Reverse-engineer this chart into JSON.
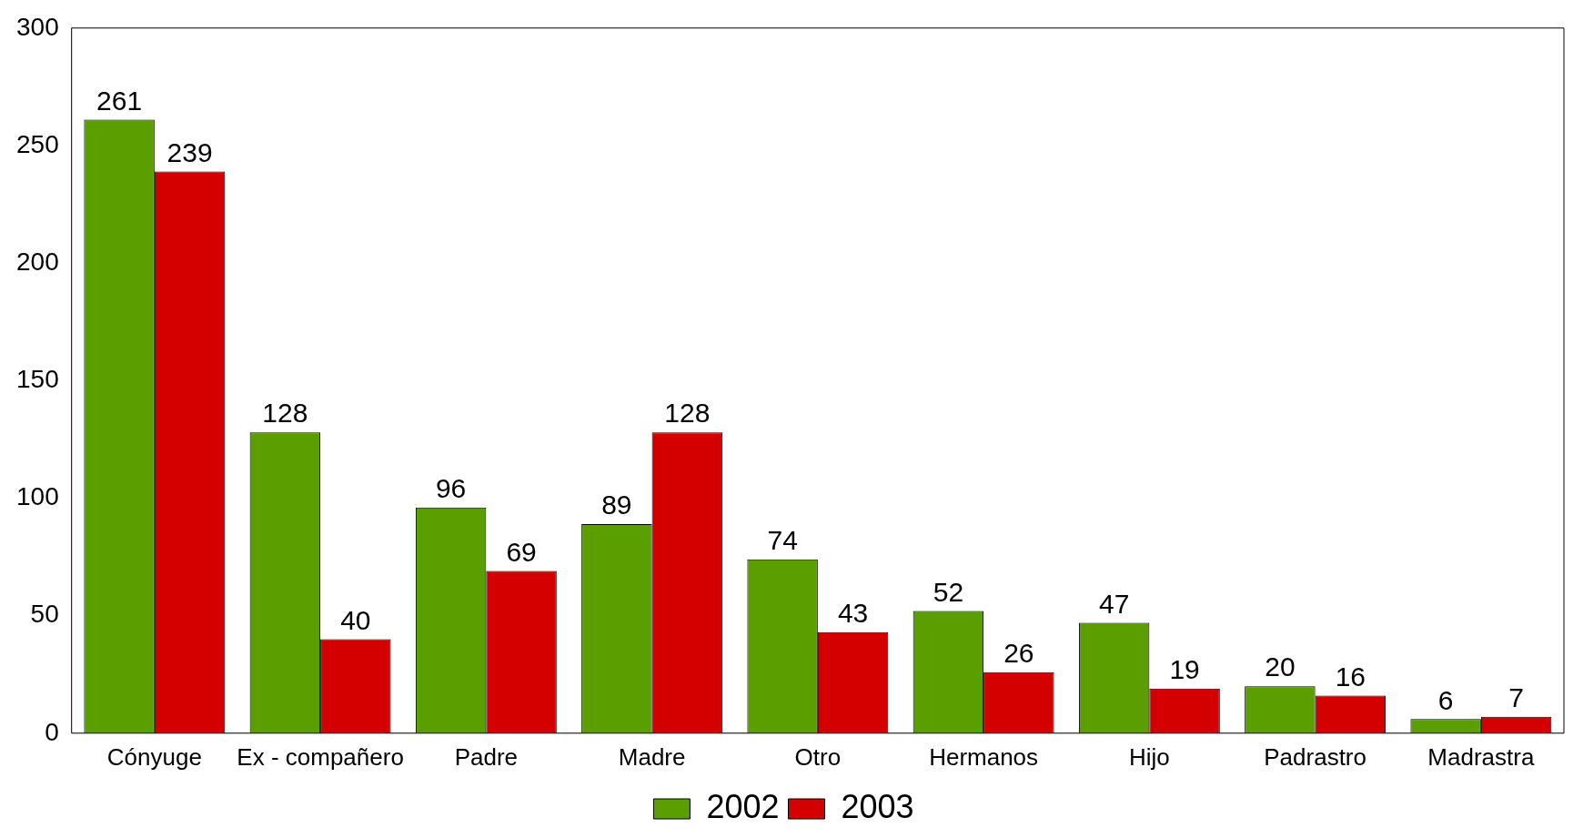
{
  "chart_data": {
    "type": "bar",
    "categories": [
      "Cónyuge",
      "Ex - compañero",
      "Padre",
      "Madre",
      "Otro",
      "Hermanos",
      "Hijo",
      "Padrastro",
      "Madrastra"
    ],
    "series": [
      {
        "name": "2002",
        "color": "#5a9e00",
        "values": [
          261,
          128,
          96,
          89,
          74,
          52,
          47,
          20,
          6
        ]
      },
      {
        "name": "2003",
        "color": "#d40000",
        "values": [
          239,
          40,
          69,
          128,
          43,
          26,
          19,
          16,
          7
        ]
      }
    ],
    "ylim": [
      0,
      300
    ],
    "yticks": [
      0,
      50,
      100,
      150,
      200,
      250,
      300
    ],
    "grid": false,
    "legend": "bottom",
    "data_labels": true
  }
}
